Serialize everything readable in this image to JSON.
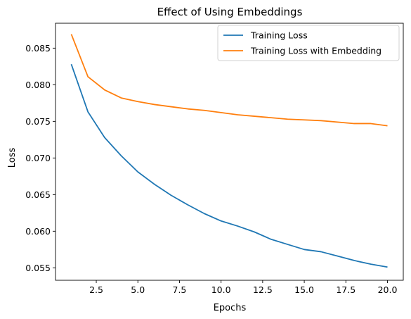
{
  "chart_data": {
    "type": "line",
    "title": "Effect of Using Embeddings",
    "xlabel": "Epochs",
    "ylabel": "Loss",
    "xlim": [
      0.05,
      20.95
    ],
    "ylim": [
      0.0533,
      0.0884
    ],
    "xticks": [
      2.5,
      5.0,
      7.5,
      10.0,
      12.5,
      15.0,
      17.5,
      20.0
    ],
    "xtick_labels": [
      "2.5",
      "5.0",
      "7.5",
      "10.0",
      "12.5",
      "15.0",
      "17.5",
      "20.0"
    ],
    "yticks": [
      0.055,
      0.06,
      0.065,
      0.07,
      0.075,
      0.08,
      0.085
    ],
    "ytick_labels": [
      "0.055",
      "0.060",
      "0.065",
      "0.070",
      "0.075",
      "0.080",
      "0.085"
    ],
    "grid": false,
    "legend_position": "top-right",
    "x": [
      1,
      2,
      3,
      4,
      5,
      6,
      7,
      8,
      9,
      10,
      11,
      12,
      13,
      14,
      15,
      16,
      17,
      18,
      19,
      20
    ],
    "series": [
      {
        "name": "Training Loss",
        "color": "#1f77b4",
        "values": [
          0.0828,
          0.0763,
          0.0728,
          0.0703,
          0.0681,
          0.0664,
          0.0649,
          0.0636,
          0.0624,
          0.0614,
          0.0607,
          0.0599,
          0.0589,
          0.0582,
          0.0575,
          0.0572,
          0.0566,
          0.056,
          0.0555,
          0.0551
        ]
      },
      {
        "name": "Training Loss with Embedding",
        "color": "#ff7f0e",
        "values": [
          0.0869,
          0.0811,
          0.0793,
          0.0782,
          0.0777,
          0.0773,
          0.077,
          0.0767,
          0.0765,
          0.0762,
          0.0759,
          0.0757,
          0.0755,
          0.0753,
          0.0752,
          0.0751,
          0.0749,
          0.0747,
          0.0747,
          0.0744
        ]
      }
    ]
  }
}
